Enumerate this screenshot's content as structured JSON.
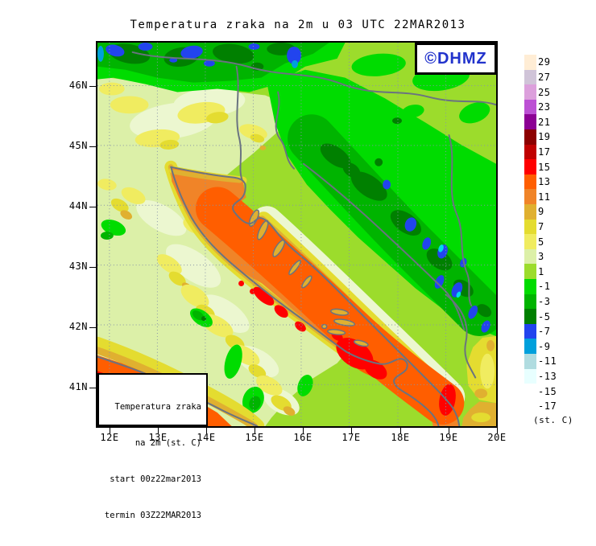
{
  "title": "Temperatura zraka na 2m u 03 UTC 22MAR2013",
  "watermark": "©DHMZ",
  "info_box": {
    "lines": [
      "Temperatura zraka",
      "na 2m (st. C)",
      "start 00z22mar2013",
      "termin 03Z22MAR2013"
    ]
  },
  "axes": {
    "lat": [
      "46N",
      "45N",
      "44N",
      "43N",
      "42N",
      "41N"
    ],
    "lon": [
      "12E",
      "13E",
      "14E",
      "15E",
      "16E",
      "17E",
      "18E",
      "19E",
      "20E"
    ]
  },
  "legend": {
    "unit_label": "(st. C)",
    "entries": [
      {
        "label": "29",
        "color": "#FFEDD5"
      },
      {
        "label": "27",
        "color": "#D0C4D8"
      },
      {
        "label": "25",
        "color": "#DCA0DC"
      },
      {
        "label": "23",
        "color": "#BC50D4"
      },
      {
        "label": "21",
        "color": "#8C0094"
      },
      {
        "label": "19",
        "color": "#8C0000"
      },
      {
        "label": "17",
        "color": "#C00000"
      },
      {
        "label": "15",
        "color": "#FF0000"
      },
      {
        "label": "13",
        "color": "#FF5E00"
      },
      {
        "label": "11",
        "color": "#F08428"
      },
      {
        "label": "9",
        "color": "#E0B030"
      },
      {
        "label": "7",
        "color": "#E4DC30"
      },
      {
        "label": "5",
        "color": "#F0EC60"
      },
      {
        "label": "3",
        "color": "#DCF0A8"
      },
      {
        "label": "1",
        "color": "#9CDC2C"
      },
      {
        "label": "-1",
        "color": "#00DC00"
      },
      {
        "label": "-3",
        "color": "#00B400"
      },
      {
        "label": "-5",
        "color": "#008000"
      },
      {
        "label": "-7",
        "color": "#2244EE"
      },
      {
        "label": "-9",
        "color": "#00A0DC"
      },
      {
        "label": "-11",
        "color": "#B0DCE0"
      },
      {
        "label": "-13",
        "color": "#E8FFFF"
      },
      {
        "label": "-15",
        "color": "#FFFFFF"
      },
      {
        "label": "-17",
        "color": "#FFFFFF"
      }
    ]
  },
  "chart_data": {
    "type": "heatmap",
    "title": "Temperatura zraka na 2m u 03 UTC 22MAR2013",
    "unit": "(st. C)",
    "x_axis_ticks": [
      "12E",
      "13E",
      "14E",
      "15E",
      "16E",
      "17E",
      "18E",
      "19E",
      "20E"
    ],
    "y_axis_ticks": [
      "46N",
      "45N",
      "44N",
      "43N",
      "42N",
      "41N"
    ],
    "colorbar_levels": [
      29,
      27,
      25,
      23,
      21,
      19,
      17,
      15,
      13,
      11,
      9,
      7,
      5,
      3,
      1,
      -1,
      -3,
      -5,
      -7,
      -9,
      -11,
      -13,
      -15,
      -17
    ],
    "field_summary": "Adriatic sea 11-15 C (orange/red), Po valley and Italy 1-7 C (pale yellow), inland Croatia/Bosnia -1 to -7 C (greens), Alps and Dinaric peaks -7 to -11 C (blue), warm Tyrrhenian corner 13-17 C"
  }
}
